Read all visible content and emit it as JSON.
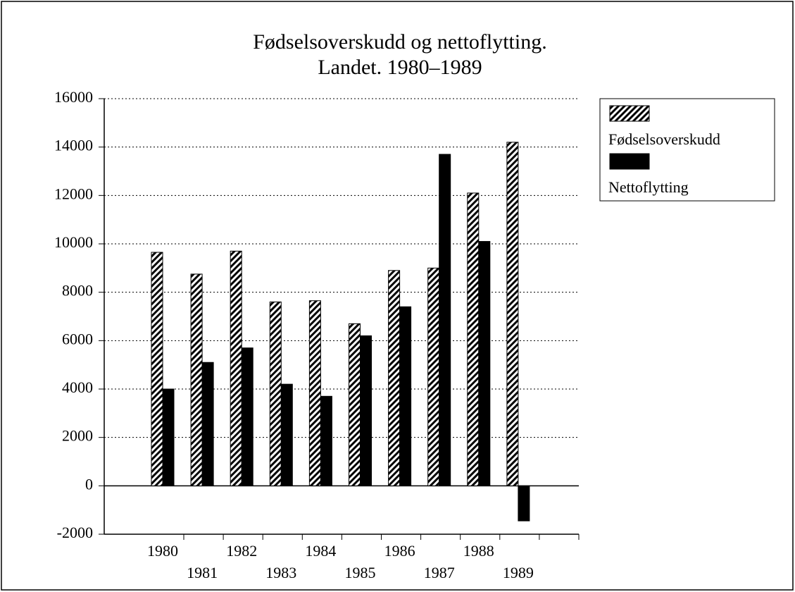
{
  "chart_data": {
    "type": "bar",
    "title": [
      "Fødselsoverskudd og nettoflytting.",
      "Landet. 1980–1989"
    ],
    "categories": [
      "1980",
      "1981",
      "1982",
      "1983",
      "1984",
      "1985",
      "1986",
      "1987",
      "1988",
      "1989"
    ],
    "series": [
      {
        "name": "Fødselsoverskudd",
        "color": "#000000",
        "pattern": "hatch",
        "values": [
          9650,
          8750,
          9700,
          7600,
          7650,
          6700,
          8900,
          9000,
          12100,
          14200
        ]
      },
      {
        "name": "Nettoflytting",
        "color": "#000000",
        "pattern": "solid",
        "values": [
          4000,
          5100,
          5700,
          4200,
          3700,
          6200,
          7400,
          13700,
          10100,
          -1450
        ]
      }
    ],
    "ylim": [
      -2000,
      16000
    ],
    "yticks": [
      -2000,
      0,
      2000,
      4000,
      6000,
      8000,
      10000,
      12000,
      14000,
      16000
    ],
    "grid": true,
    "legend": "right"
  }
}
